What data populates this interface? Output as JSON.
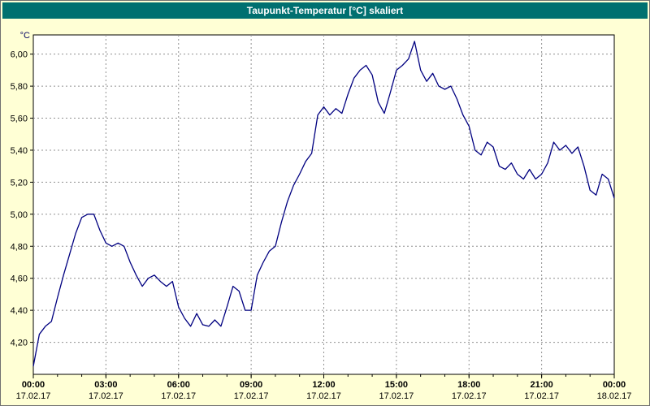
{
  "window": {
    "title": "Taupunkt-Temperatur [°C] skaliert"
  },
  "colors": {
    "titlebar_bg": "#007070",
    "titlebar_text": "#FFFFFF",
    "page_bg": "#FFFFD5",
    "plot_bg": "#FFFFFF",
    "plot_border": "#000000",
    "grid": "#909090",
    "line": "#000080",
    "tick_text": "#000000",
    "unit_text": "#000060"
  },
  "chart_data": {
    "type": "line",
    "title": "Taupunkt-Temperatur [°C] skaliert",
    "unit_label": "°C",
    "xlabel": "",
    "ylabel": "°C",
    "xlim_hours": [
      0,
      24
    ],
    "ylim": [
      4.0,
      6.12
    ],
    "grid": true,
    "legend": "none",
    "x_ticks": [
      {
        "t": 0,
        "time": "00:00",
        "date": "17.02.17"
      },
      {
        "t": 3,
        "time": "03:00",
        "date": "17.02.17"
      },
      {
        "t": 6,
        "time": "06:00",
        "date": "17.02.17"
      },
      {
        "t": 9,
        "time": "09:00",
        "date": "17.02.17"
      },
      {
        "t": 12,
        "time": "12:00",
        "date": "17.02.17"
      },
      {
        "t": 15,
        "time": "15:00",
        "date": "17.02.17"
      },
      {
        "t": 18,
        "time": "18:00",
        "date": "17.02.17"
      },
      {
        "t": 21,
        "time": "21:00",
        "date": "17.02.17"
      },
      {
        "t": 24,
        "time": "00:00",
        "date": "18.02.17"
      }
    ],
    "minor_x_step_hours": 1,
    "y_ticks": [
      {
        "v": 6.0,
        "label": "6,00"
      },
      {
        "v": 5.8,
        "label": "5,80"
      },
      {
        "v": 5.6,
        "label": "5,60"
      },
      {
        "v": 5.4,
        "label": "5,40"
      },
      {
        "v": 5.2,
        "label": "5,20"
      },
      {
        "v": 5.0,
        "label": "5,00"
      },
      {
        "v": 4.8,
        "label": "4,80"
      },
      {
        "v": 4.6,
        "label": "4,60"
      },
      {
        "v": 4.4,
        "label": "4,40"
      },
      {
        "v": 4.2,
        "label": "4,20"
      }
    ],
    "series": [
      {
        "name": "Taupunkt-Temperatur",
        "x_start_hours": 0,
        "x_step_hours": 0.25,
        "values": [
          4.05,
          4.25,
          4.3,
          4.33,
          4.48,
          4.62,
          4.75,
          4.88,
          4.98,
          5.0,
          5.0,
          4.9,
          4.82,
          4.8,
          4.82,
          4.8,
          4.7,
          4.62,
          4.55,
          4.6,
          4.62,
          4.58,
          4.55,
          4.58,
          4.42,
          4.35,
          4.3,
          4.38,
          4.31,
          4.3,
          4.34,
          4.3,
          4.42,
          4.55,
          4.52,
          4.4,
          4.4,
          4.62,
          4.7,
          4.77,
          4.8,
          4.95,
          5.08,
          5.18,
          5.25,
          5.33,
          5.38,
          5.62,
          5.67,
          5.62,
          5.66,
          5.63,
          5.75,
          5.85,
          5.9,
          5.93,
          5.87,
          5.7,
          5.63,
          5.76,
          5.9,
          5.93,
          5.97,
          6.08,
          5.9,
          5.83,
          5.88,
          5.8,
          5.78,
          5.8,
          5.72,
          5.62,
          5.55,
          5.4,
          5.37,
          5.45,
          5.42,
          5.3,
          5.28,
          5.32,
          5.25,
          5.22,
          5.28,
          5.22,
          5.25,
          5.32,
          5.45,
          5.4,
          5.43,
          5.38,
          5.42,
          5.3,
          5.15,
          5.12,
          5.25,
          5.22,
          5.1
        ]
      }
    ]
  }
}
